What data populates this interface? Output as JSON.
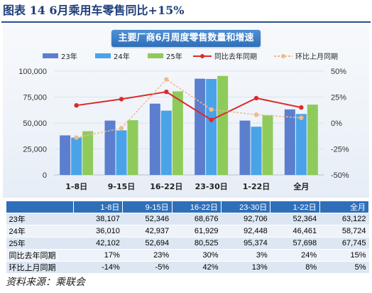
{
  "figure": {
    "title": "图表 14  6月乘用车零售同比+15%",
    "source": "资料来源：乘联会"
  },
  "chart_data": {
    "type": "bar",
    "title": "主要厂商6月周度零售数量和增速",
    "categories": [
      "1-8日",
      "9-15日",
      "16-22日",
      "23-30日",
      "1-22日",
      "全月"
    ],
    "series": [
      {
        "name": "23年",
        "kind": "bar",
        "axis": "left",
        "color": "#5b7fce",
        "values": [
          38107,
          52346,
          68676,
          92706,
          52364,
          63122
        ]
      },
      {
        "name": "24年",
        "kind": "bar",
        "axis": "left",
        "color": "#4aa3e8",
        "values": [
          36010,
          42937,
          61929,
          92448,
          46461,
          58724
        ]
      },
      {
        "name": "25年",
        "kind": "bar",
        "axis": "left",
        "color": "#8fcb5a",
        "values": [
          42102,
          52694,
          80525,
          95374,
          57698,
          67745
        ]
      },
      {
        "name": "同比去年同期",
        "kind": "line",
        "axis": "right",
        "color": "#dc2b2b",
        "values": [
          17,
          23,
          30,
          3,
          24,
          15
        ]
      },
      {
        "name": "环比上月同期",
        "kind": "line",
        "axis": "right",
        "color": "#efbb8c",
        "dashed": true,
        "values": [
          -14,
          -5,
          42,
          13,
          8,
          5
        ]
      }
    ],
    "y_left": {
      "ticks": [
        "0",
        "25,000",
        "50,000",
        "75,000",
        "100,000"
      ],
      "range": [
        0,
        100000
      ]
    },
    "y_right": {
      "ticks": [
        "-50%",
        "-25%",
        "0%",
        "25%",
        "50%"
      ],
      "range": [
        -50,
        50
      ]
    },
    "legend_position": "top",
    "grid": true
  },
  "table": {
    "header": [
      "",
      "1-8日",
      "9-15日",
      "16-22日",
      "23-30日",
      "1-22日",
      "全月"
    ],
    "rows": [
      [
        "23年",
        "38,107",
        "52,346",
        "68,676",
        "92,706",
        "52,364",
        "63,122"
      ],
      [
        "24年",
        "36,010",
        "42,937",
        "61,929",
        "92,448",
        "46,461",
        "58,724"
      ],
      [
        "25年",
        "42,102",
        "52,694",
        "80,525",
        "95,374",
        "57,698",
        "67,745"
      ],
      [
        "同比去年同期",
        "17%",
        "23%",
        "30%",
        "3%",
        "24%",
        "15%"
      ],
      [
        "环比上月同期",
        "-14%",
        "-5%",
        "42%",
        "13%",
        "8%",
        "5%"
      ]
    ]
  }
}
